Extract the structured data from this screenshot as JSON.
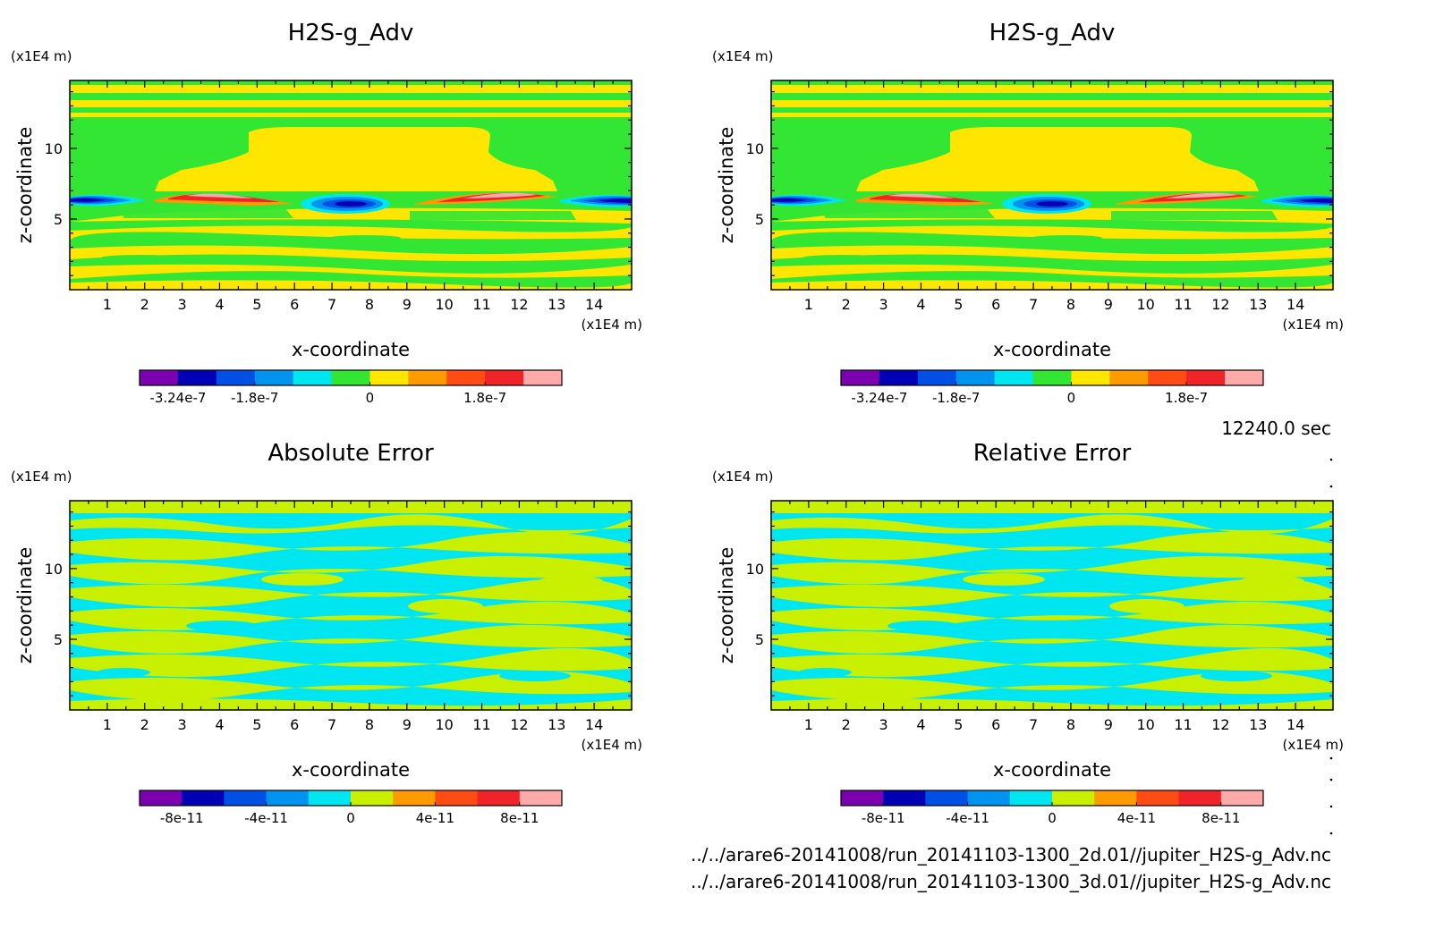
{
  "time_label": "12240.0 sec",
  "footer": {
    "line1": "../../arare6-20141008/run_20141103-1300_2d.01//jupiter_H2S-g_Adv.nc",
    "line2": "../../arare6-20141008/run_20141103-1300_3d.01//jupiter_H2S-g_Adv.nc"
  },
  "chart_data": [
    {
      "type": "heatmap",
      "title": "H2S-g_Adv",
      "xlabel": "x-coordinate",
      "ylabel": "z-coordinate",
      "x_unit": "(x1E4 m)",
      "y_unit": "(x1E4 m)",
      "xlim": [
        0,
        15
      ],
      "ylim": [
        0,
        14.8
      ],
      "x_ticks": [
        1,
        2,
        3,
        4,
        5,
        6,
        7,
        8,
        9,
        10,
        11,
        12,
        13,
        14
      ],
      "y_ticks": [
        5,
        10
      ],
      "pattern": "adv",
      "colorbar": {
        "colors": [
          "#7a00b0",
          "#0000b4",
          "#0050e6",
          "#0094f0",
          "#00e6f0",
          "#33e633",
          "#ffe600",
          "#ff9a00",
          "#ff4b14",
          "#f02328",
          "#ffaaaa"
        ],
        "tick_labels": [
          "-3.24e-7",
          "-1.8e-7",
          "0",
          "1.8e-7"
        ],
        "tick_at": [
          1,
          3,
          6,
          9
        ]
      }
    },
    {
      "type": "heatmap",
      "title": "H2S-g_Adv",
      "xlabel": "x-coordinate",
      "ylabel": "z-coordinate",
      "x_unit": "(x1E4 m)",
      "y_unit": "(x1E4 m)",
      "xlim": [
        0,
        15
      ],
      "ylim": [
        0,
        14.8
      ],
      "x_ticks": [
        1,
        2,
        3,
        4,
        5,
        6,
        7,
        8,
        9,
        10,
        11,
        12,
        13,
        14
      ],
      "y_ticks": [
        5,
        10
      ],
      "pattern": "adv",
      "colorbar": {
        "colors": [
          "#7a00b0",
          "#0000b4",
          "#0050e6",
          "#0094f0",
          "#00e6f0",
          "#33e633",
          "#ffe600",
          "#ff9a00",
          "#ff4b14",
          "#f02328",
          "#ffaaaa"
        ],
        "tick_labels": [
          "-3.24e-7",
          "-1.8e-7",
          "0",
          "1.8e-7"
        ],
        "tick_at": [
          1,
          3,
          6,
          9
        ]
      }
    },
    {
      "type": "heatmap",
      "title": "Absolute Error",
      "xlabel": "x-coordinate",
      "ylabel": "z-coordinate",
      "x_unit": "(x1E4 m)",
      "y_unit": "(x1E4 m)",
      "xlim": [
        0,
        15
      ],
      "ylim": [
        0,
        14.8
      ],
      "x_ticks": [
        1,
        2,
        3,
        4,
        5,
        6,
        7,
        8,
        9,
        10,
        11,
        12,
        13,
        14
      ],
      "y_ticks": [
        5,
        10
      ],
      "pattern": "noise",
      "colorbar": {
        "colors": [
          "#7a00b0",
          "#0000b4",
          "#0050e6",
          "#0094f0",
          "#00e6f0",
          "#c8f000",
          "#ff9a00",
          "#ff4b14",
          "#f02328",
          "#ffaaaa"
        ],
        "tick_labels": [
          "-8e-11",
          "-4e-11",
          "0",
          "4e-11",
          "8e-11"
        ],
        "tick_at": [
          1,
          3,
          5,
          7,
          9
        ]
      }
    },
    {
      "type": "heatmap",
      "title": "Relative Error",
      "xlabel": "x-coordinate",
      "ylabel": "z-coordinate",
      "x_unit": "(x1E4 m)",
      "y_unit": "(x1E4 m)",
      "xlim": [
        0,
        15
      ],
      "ylim": [
        0,
        14.8
      ],
      "x_ticks": [
        1,
        2,
        3,
        4,
        5,
        6,
        7,
        8,
        9,
        10,
        11,
        12,
        13,
        14
      ],
      "y_ticks": [
        5,
        10
      ],
      "pattern": "noise",
      "colorbar": {
        "colors": [
          "#7a00b0",
          "#0000b4",
          "#0050e6",
          "#0094f0",
          "#00e6f0",
          "#c8f000",
          "#ff9a00",
          "#ff4b14",
          "#f02328",
          "#ffaaaa"
        ],
        "tick_labels": [
          "-8e-11",
          "-4e-11",
          "0",
          "4e-11",
          "8e-11"
        ],
        "tick_at": [
          1,
          3,
          5,
          7,
          9
        ]
      }
    }
  ]
}
